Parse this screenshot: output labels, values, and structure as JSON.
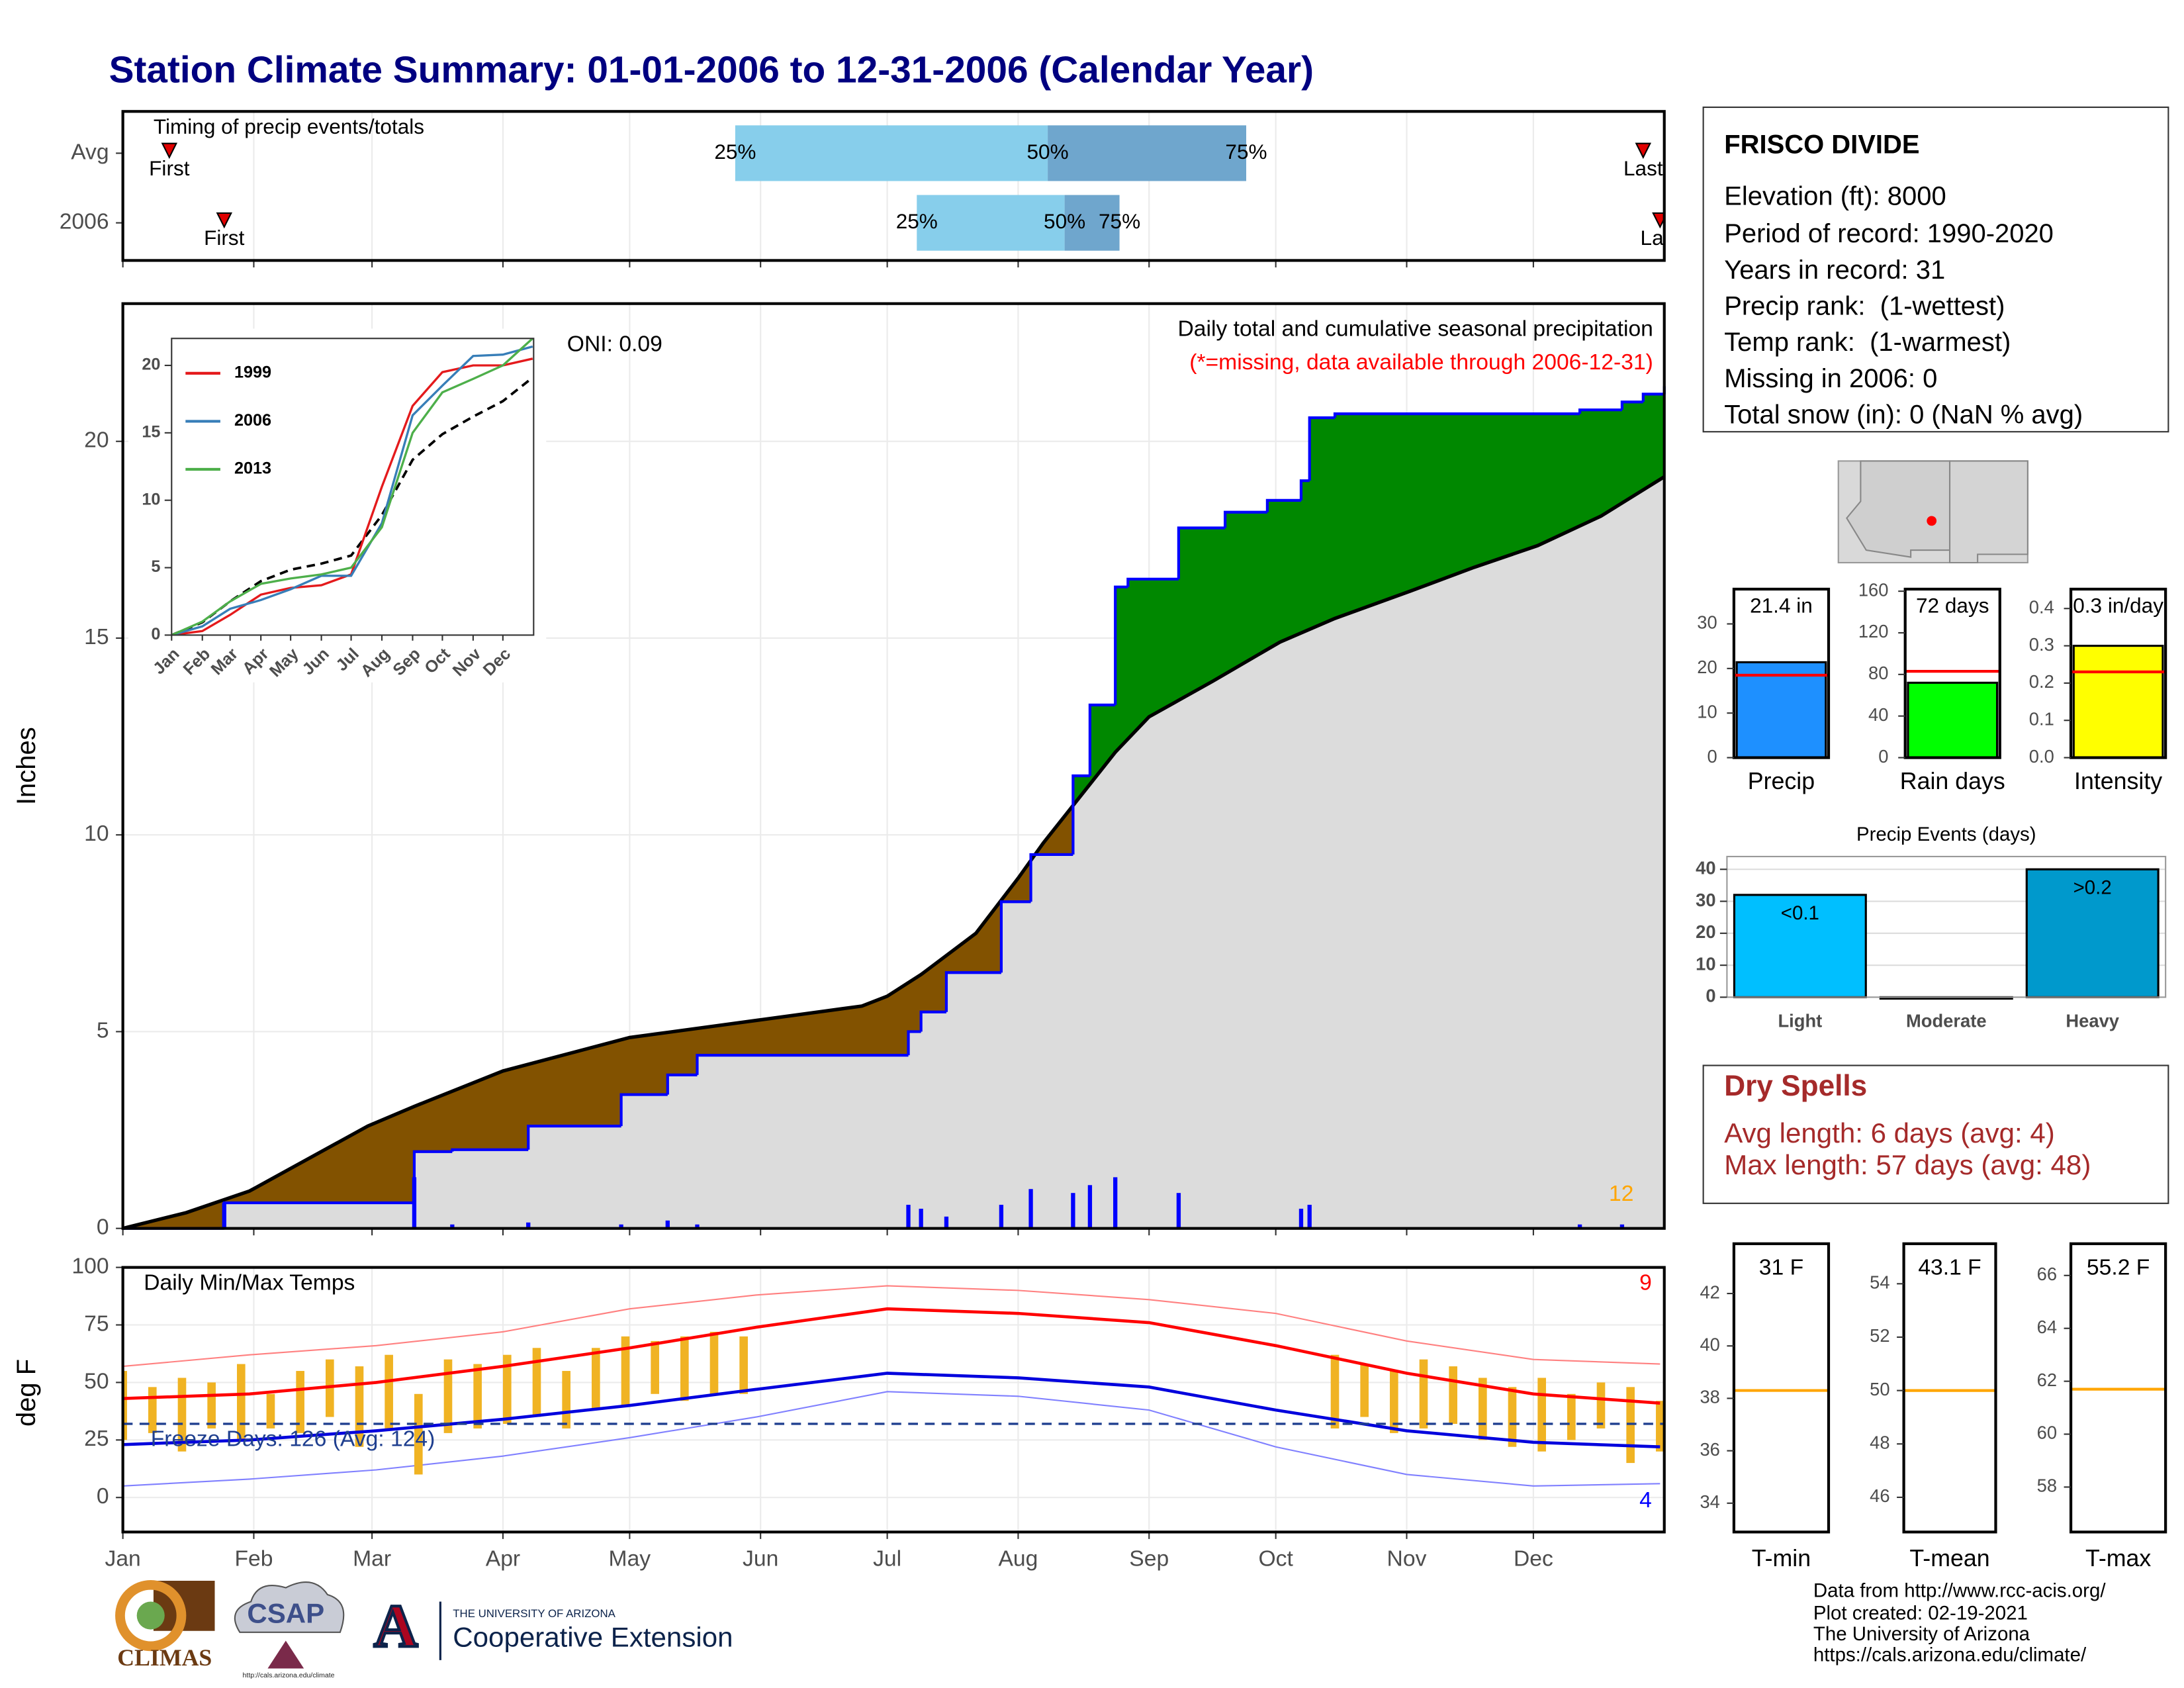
{
  "title": "Station Climate Summary: 01-01-2006 to 12-31-2006 (Calendar Year)",
  "chart_data": [
    {
      "type": "timing",
      "title": "Timing of precip events/totals",
      "categories": [
        "Avg",
        "2006"
      ],
      "xlim": [
        0,
        365
      ],
      "first": [
        11,
        24
      ],
      "last": [
        360,
        364
      ],
      "q25": [
        145,
        188
      ],
      "q50": [
        219,
        223
      ],
      "q75": [
        266,
        236
      ],
      "first_label": "First",
      "last_label": "Last",
      "quantile_labels": [
        "25%",
        "50%",
        "75%"
      ],
      "colors": [
        "#87ceeb",
        "#6fa6cd"
      ],
      "marker_color": "#e00000"
    },
    {
      "type": "area",
      "y_label": "Inches",
      "ylim": [
        0,
        23.5
      ],
      "yticks": [
        0,
        5,
        10,
        15,
        20
      ],
      "xlim": [
        0,
        365
      ],
      "subtitle": "Daily total and cumulative seasonal precipitation",
      "note": "(*=missing, data available through 2006-12-31)",
      "oni": "ONI: 0.09",
      "count_label": "12",
      "average": {
        "color": "#000000",
        "fill": "#825200",
        "x": [
          0,
          15,
          30,
          58,
          69,
          90,
          120,
          151,
          175,
          181,
          189,
          202,
          212,
          218,
          235,
          243,
          258,
          274,
          287,
          305,
          320,
          335,
          350,
          365
        ],
        "values": [
          0,
          0.4,
          0.95,
          2.6,
          3.1,
          4.0,
          4.85,
          5.3,
          5.65,
          5.9,
          6.45,
          7.5,
          8.9,
          9.8,
          12.1,
          13.0,
          13.9,
          14.9,
          15.5,
          16.2,
          16.8,
          17.35,
          18.1,
          19.1
        ]
      },
      "observed": {
        "color": "#0000ff",
        "fill": "#008800",
        "base_fill": "#dcdcdc",
        "x": [
          0,
          24,
          69,
          78,
          96,
          118,
          129,
          136,
          186,
          189,
          195,
          208,
          215,
          225,
          229,
          235,
          238,
          250,
          261,
          271,
          279,
          281,
          287,
          345,
          355,
          360,
          365
        ],
        "values": [
          0,
          0.65,
          1.95,
          2.0,
          2.6,
          3.4,
          3.9,
          4.4,
          5.0,
          5.5,
          6.5,
          8.3,
          9.5,
          11.5,
          13.3,
          16.3,
          16.5,
          17.8,
          18.2,
          18.5,
          19.0,
          20.6,
          20.7,
          20.8,
          21.0,
          21.2,
          21.4
        ]
      },
      "daily": {
        "color": "#0000ff",
        "x": [
          24,
          69,
          78,
          96,
          118,
          129,
          136,
          186,
          189,
          195,
          208,
          215,
          225,
          229,
          235,
          250,
          279,
          281,
          345,
          355
        ],
        "values": [
          0.65,
          1.3,
          0.1,
          0.15,
          0.1,
          0.2,
          0.1,
          0.6,
          0.5,
          0.3,
          0.6,
          1.0,
          0.9,
          1.1,
          1.3,
          0.9,
          0.5,
          0.6,
          0.1,
          0.1
        ]
      }
    },
    {
      "type": "line",
      "xlim": [
        0,
        365
      ],
      "ylim": [
        0,
        22
      ],
      "yticks": [
        0,
        5,
        10,
        15,
        20
      ],
      "xticks": [
        {
          "value": 0,
          "label": "Jan"
        },
        {
          "value": 31,
          "label": "Feb"
        },
        {
          "value": 59,
          "label": "Mar"
        },
        {
          "value": 90,
          "label": "Apr"
        },
        {
          "value": 120,
          "label": "May"
        },
        {
          "value": 151,
          "label": "Jun"
        },
        {
          "value": 181,
          "label": "Jul"
        },
        {
          "value": 212,
          "label": "Aug"
        },
        {
          "value": 243,
          "label": "Sep"
        },
        {
          "value": 273,
          "label": "Oct"
        },
        {
          "value": 304,
          "label": "Nov"
        },
        {
          "value": 334,
          "label": "Dec"
        }
      ],
      "x": [
        0,
        31,
        59,
        90,
        120,
        151,
        181,
        212,
        243,
        273,
        304,
        334,
        364
      ],
      "series": [
        {
          "name": "1999",
          "color": "#e41a1c",
          "values": [
            0,
            0.3,
            1.5,
            3.0,
            3.5,
            3.7,
            4.5,
            11,
            17,
            19.5,
            20,
            20,
            20.5
          ]
        },
        {
          "name": "2006",
          "color": "#377eb8",
          "values": [
            0,
            0.65,
            1.95,
            2.6,
            3.4,
            4.4,
            4.4,
            8.3,
            16.3,
            18.5,
            20.7,
            20.8,
            21.4
          ]
        },
        {
          "name": "2013",
          "color": "#4daf4a",
          "values": [
            0,
            1.0,
            2.5,
            3.8,
            4.2,
            4.5,
            5.0,
            8,
            15,
            18,
            19,
            20,
            22
          ]
        }
      ],
      "average": {
        "color": "#000000",
        "values": [
          0,
          0.95,
          2.5,
          4.0,
          4.85,
          5.3,
          5.9,
          8.9,
          13.0,
          14.9,
          16.2,
          17.35,
          19.1
        ]
      }
    },
    {
      "type": "temperature",
      "title": "Daily Min/Max Temps",
      "y_label": "deg F",
      "ylim": [
        -15,
        100
      ],
      "yticks": [
        0,
        25,
        50,
        75,
        100
      ],
      "xlim": [
        0,
        365
      ],
      "xticks": [
        {
          "value": 0,
          "label": "Jan"
        },
        {
          "value": 31,
          "label": "Feb"
        },
        {
          "value": 59,
          "label": "Mar"
        },
        {
          "value": 90,
          "label": "Apr"
        },
        {
          "value": 120,
          "label": "May"
        },
        {
          "value": 151,
          "label": "Jun"
        },
        {
          "value": 181,
          "label": "Jul"
        },
        {
          "value": 212,
          "label": "Aug"
        },
        {
          "value": 243,
          "label": "Sep"
        },
        {
          "value": 273,
          "label": "Oct"
        },
        {
          "value": 304,
          "label": "Nov"
        },
        {
          "value": 334,
          "label": "Dec"
        }
      ],
      "freeze_label": "Freeze Days: 126 (Avg: 124)",
      "freeze_temp": 32,
      "freeze_color": "#1f3f8f",
      "max_count_label": "9",
      "min_count_label": "4",
      "x": [
        0,
        30,
        60,
        90,
        120,
        150,
        181,
        212,
        243,
        273,
        304,
        334,
        364
      ],
      "normal_max": {
        "color": "#ff0000",
        "values": [
          43,
          45,
          50,
          57,
          65,
          74,
          82,
          80,
          76,
          66,
          54,
          45,
          41
        ]
      },
      "normal_min": {
        "color": "#0000dd",
        "values": [
          23,
          25,
          29,
          34,
          40,
          47,
          54,
          52,
          48,
          38,
          29,
          24,
          22
        ]
      },
      "extreme_max": {
        "color": "#ff8080",
        "values": [
          57,
          62,
          66,
          72,
          82,
          88,
          92,
          90,
          86,
          80,
          68,
          60,
          58
        ]
      },
      "extreme_min": {
        "color": "#8080ff",
        "values": [
          5,
          8,
          12,
          18,
          26,
          35,
          46,
          44,
          38,
          22,
          10,
          5,
          6
        ]
      },
      "observed": {
        "color": "#f0b323",
        "x": [
          0,
          7,
          14,
          21,
          28,
          35,
          42,
          49,
          56,
          63,
          70,
          77,
          84,
          91,
          98,
          105,
          112,
          119,
          126,
          133,
          140,
          147,
          287,
          294,
          301,
          308,
          315,
          322,
          329,
          336,
          343,
          350,
          357,
          364
        ],
        "max": [
          55,
          48,
          52,
          50,
          58,
          45,
          55,
          60,
          57,
          62,
          45,
          60,
          58,
          62,
          65,
          55,
          65,
          70,
          68,
          70,
          72,
          70,
          62,
          58,
          55,
          60,
          57,
          52,
          48,
          52,
          45,
          50,
          48,
          42
        ],
        "min": [
          25,
          28,
          20,
          30,
          25,
          30,
          28,
          35,
          22,
          30,
          10,
          28,
          30,
          32,
          35,
          30,
          38,
          40,
          45,
          42,
          45,
          45,
          30,
          35,
          28,
          30,
          32,
          25,
          22,
          20,
          25,
          30,
          15,
          20
        ]
      }
    },
    {
      "type": "bar",
      "x_label": "Precip",
      "value": 21.4,
      "value_label": "21.4 in",
      "avg": 18.5,
      "color": "#1e90ff",
      "avg_color": "#ff0000",
      "ylim": [
        0,
        37.8
      ],
      "yticks": [
        0,
        10,
        20,
        30
      ]
    },
    {
      "type": "bar",
      "x_label": "Rain days",
      "value": 72,
      "value_label": "72 days",
      "avg": 83,
      "color": "#00ff00",
      "avg_color": "#ff0000",
      "ylim": [
        0,
        162
      ],
      "yticks": [
        0,
        40,
        80,
        120,
        160
      ]
    },
    {
      "type": "bar",
      "x_label": "Intensity",
      "value": 0.3,
      "value_label": "0.3 in/day",
      "avg": 0.23,
      "color": "#ffff00",
      "avg_color": "#ff0000",
      "ylim": [
        0,
        0.452
      ],
      "yticks": [
        {
          "value": 0,
          "label": "0.0"
        },
        0.1,
        0.2,
        0.3,
        0.4
      ]
    },
    {
      "type": "bar",
      "title": "Precip Events (days)",
      "categories": [
        "Light",
        "Moderate",
        "Heavy"
      ],
      "values": [
        32,
        0,
        40
      ],
      "bar_labels": [
        "<0.1",
        null,
        ">0.2"
      ],
      "colors": [
        "#00bfff",
        "#00bfff",
        "#0099cc"
      ],
      "ylim": [
        0,
        44
      ],
      "yticks": [
        0,
        10,
        20,
        30,
        40
      ],
      "grid": true
    },
    {
      "type": "box",
      "x_label": "T-min",
      "value": 31,
      "value_label": "31 F",
      "avg": 38.3,
      "avg_color": "#ffa500",
      "ylim": [
        32.9,
        43.9
      ],
      "yticks": [
        34,
        36,
        38,
        40,
        42
      ]
    },
    {
      "type": "box",
      "x_label": "T-mean",
      "value": 43.1,
      "value_label": "43.1 F",
      "avg": 50,
      "avg_color": "#ffa500",
      "ylim": [
        44.7,
        55.5
      ],
      "yticks": [
        46,
        48,
        50,
        52,
        54
      ]
    },
    {
      "type": "box",
      "x_label": "T-max",
      "value": 55.2,
      "value_label": "55.2 F",
      "avg": 61.7,
      "avg_color": "#ffa500",
      "ylim": [
        56.3,
        67.2
      ],
      "yticks": [
        58,
        60,
        62,
        64,
        66
      ]
    }
  ],
  "station": {
    "name": "FRISCO DIVIDE",
    "lines": [
      "Elevation (ft): 8000",
      "Period of record: 1990-2020",
      "Years in record: 31",
      "Precip rank:  (1-wettest)",
      "Temp rank:  (1-warmest)",
      "Missing in 2006: 0",
      "Total snow (in): 0 (NaN % avg)"
    ]
  },
  "dry_spells": {
    "title": "Dry Spells",
    "lines": [
      "Avg length: 6 days (avg: 4)",
      "Max length: 57 days (avg: 48)"
    ]
  },
  "footer": {
    "lines": [
      "Data from http://www.rcc-acis.org/",
      "Plot created: 02-19-2021",
      "The University of Arizona",
      "https://cals.arizona.edu/climate/"
    ]
  },
  "logos": {
    "climas": "CLIMAS",
    "csap": "CSAP",
    "csap_url": "http://cals.arizona.edu/climate",
    "ua_letter": "A",
    "ua": "THE UNIVERSITY OF ARIZONA",
    "extension": "Cooperative Extension"
  }
}
